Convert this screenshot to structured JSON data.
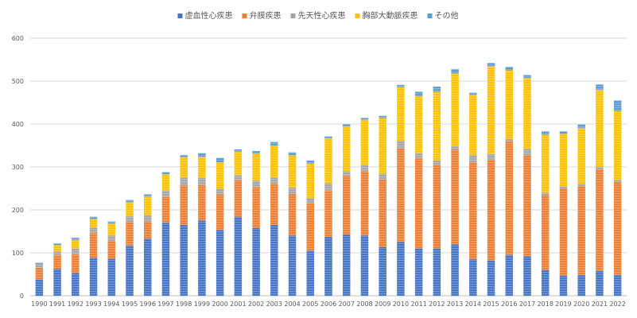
{
  "chart_data": {
    "type": "bar",
    "stacked": true,
    "title": "",
    "xlabel": "",
    "ylabel": "",
    "ylim": [
      0,
      600
    ],
    "yticks": [
      0,
      100,
      200,
      300,
      400,
      500,
      600
    ],
    "grid": true,
    "legend_position": "top",
    "categories": [
      "1990",
      "1991",
      "1992",
      "1993",
      "1994",
      "1995",
      "1996",
      "1997",
      "1998",
      "1999",
      "2000",
      "2001",
      "2002",
      "2003",
      "2004",
      "2005",
      "2006",
      "2007",
      "2008",
      "2009",
      "2010",
      "2011",
      "2012",
      "2013",
      "2014",
      "2015",
      "2016",
      "2017",
      "2018",
      "2019",
      "2020",
      "2021",
      "2022"
    ],
    "series": [
      {
        "name": "虚血性心疾患",
        "color": "#4472C4",
        "values": [
          37,
          62,
          53,
          88,
          86,
          117,
          133,
          170,
          165,
          175,
          153,
          184,
          158,
          165,
          140,
          105,
          137,
          143,
          140,
          113,
          125,
          110,
          110,
          120,
          85,
          82,
          95,
          92,
          60,
          47,
          48,
          58,
          48
        ]
      },
      {
        "name": "弁膜疾患",
        "color": "#ED7D31",
        "values": [
          28,
          33,
          43,
          58,
          42,
          55,
          40,
          60,
          92,
          83,
          83,
          85,
          95,
          95,
          97,
          110,
          108,
          137,
          150,
          158,
          218,
          210,
          195,
          220,
          225,
          235,
          265,
          235,
          175,
          203,
          208,
          237,
          217
        ]
      },
      {
        "name": "先天性心疾患",
        "color": "#A5A5A5",
        "values": [
          10,
          8,
          14,
          13,
          12,
          13,
          15,
          15,
          18,
          16,
          13,
          12,
          15,
          15,
          15,
          13,
          17,
          10,
          15,
          13,
          18,
          12,
          10,
          8,
          18,
          13,
          5,
          15,
          5,
          5,
          5,
          5,
          5
        ]
      },
      {
        "name": "胸部大動脈疾患",
        "color": "#FFC000",
        "values": [
          0,
          15,
          20,
          20,
          28,
          33,
          43,
          38,
          48,
          50,
          62,
          55,
          63,
          75,
          75,
          80,
          105,
          105,
          105,
          130,
          125,
          133,
          160,
          170,
          140,
          205,
          160,
          165,
          135,
          122,
          130,
          180,
          160
        ]
      },
      {
        "name": "その他",
        "color": "#5B9BD5",
        "values": [
          2,
          4,
          5,
          5,
          5,
          5,
          5,
          5,
          5,
          8,
          10,
          5,
          6,
          8,
          7,
          7,
          4,
          5,
          4,
          5,
          5,
          10,
          12,
          10,
          5,
          7,
          8,
          7,
          8,
          6,
          8,
          12,
          25
        ]
      }
    ]
  }
}
